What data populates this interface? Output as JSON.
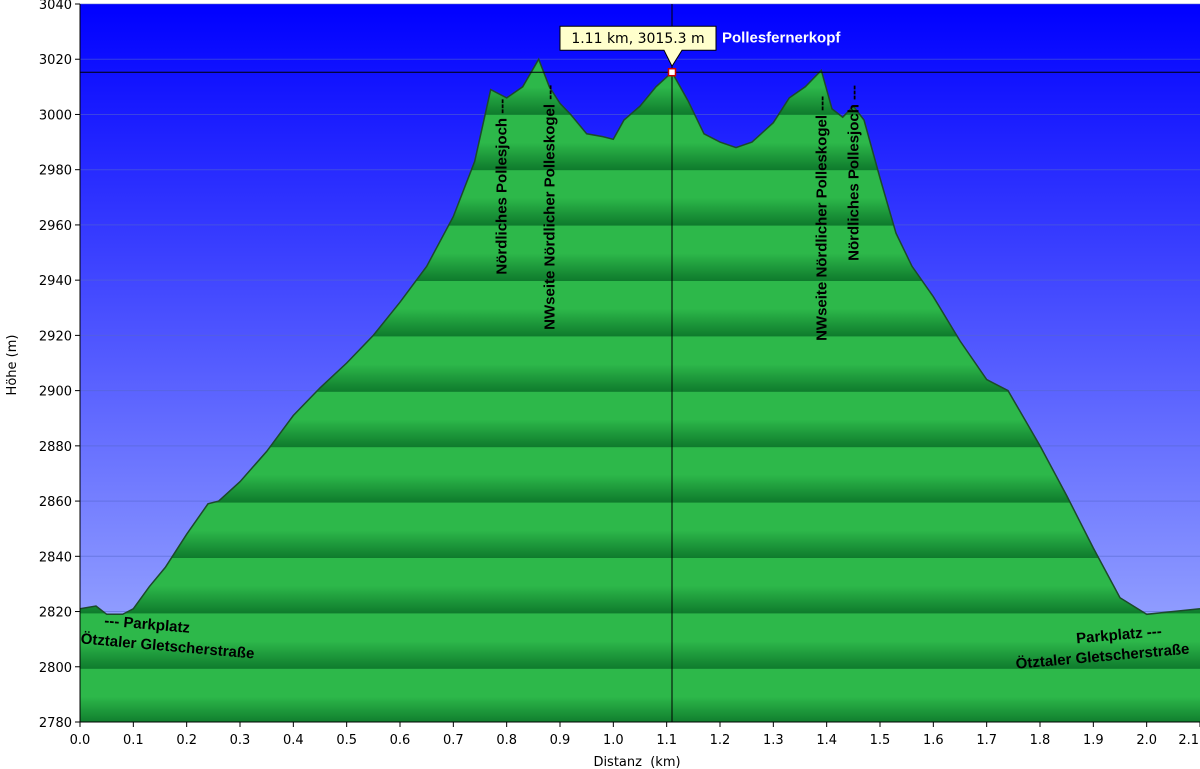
{
  "chart_data": {
    "type": "area",
    "title": "",
    "xlabel": "Distanz  (km)",
    "ylabel": "Höhe (m)",
    "xlim": [
      0.0,
      2.1
    ],
    "ylim": [
      2780,
      3040
    ],
    "x_ticks": [
      "0.0",
      "0.1",
      "0.2",
      "0.3",
      "0.4",
      "0.5",
      "0.6",
      "0.7",
      "0.8",
      "0.9",
      "1.0",
      "1.1",
      "1.2",
      "1.3",
      "1.4",
      "1.5",
      "1.6",
      "1.7",
      "1.8",
      "1.9",
      "2.0",
      "2.1"
    ],
    "y_ticks": [
      "2780",
      "2800",
      "2820",
      "2840",
      "2860",
      "2880",
      "2900",
      "2920",
      "2940",
      "2960",
      "2980",
      "3000",
      "3020",
      "3040"
    ],
    "grid": true,
    "series": [
      {
        "x": [
          0.0,
          0.03,
          0.05,
          0.08,
          0.1,
          0.13,
          0.16,
          0.2,
          0.24,
          0.26,
          0.3,
          0.35,
          0.4,
          0.45,
          0.5,
          0.55,
          0.6,
          0.65,
          0.7,
          0.74,
          0.77,
          0.8,
          0.83,
          0.86,
          0.88,
          0.9,
          0.92,
          0.95,
          0.98,
          1.0,
          1.02,
          1.05,
          1.08,
          1.11,
          1.14,
          1.17,
          1.2,
          1.23,
          1.26,
          1.3,
          1.33,
          1.36,
          1.39,
          1.41,
          1.43,
          1.45,
          1.47,
          1.5,
          1.53,
          1.56,
          1.6,
          1.65,
          1.7,
          1.74,
          1.8,
          1.85,
          1.9,
          1.95,
          2.0,
          2.05,
          2.1
        ],
        "values": [
          2821,
          2822,
          2819,
          2819,
          2821,
          2829,
          2836,
          2848,
          2859,
          2860,
          2867,
          2878,
          2891,
          2901,
          2910,
          2920,
          2932,
          2945,
          2963,
          2983,
          3009,
          3006,
          3010,
          3020,
          3010,
          3004,
          3000,
          2993,
          2992,
          2991,
          2998,
          3003,
          3010,
          3015.3,
          3005,
          2993,
          2990,
          2988,
          2990,
          2997,
          3006,
          3010,
          3016,
          3002,
          2999,
          3003,
          2998,
          2977,
          2957,
          2945,
          2934,
          2918,
          2904,
          2900,
          2880,
          2862,
          2843,
          2825,
          2819,
          2820,
          2821
        ]
      }
    ],
    "annotations": [
      {
        "x": 0.0,
        "label_lines": [
          "--- Parkplatz",
          "Ötztaler Gletscherstraße"
        ]
      },
      {
        "x": 0.79,
        "label": "Nördliches Pollesjoch ---"
      },
      {
        "x": 0.88,
        "label": "NWseite Nördlicher Polleskogel ---"
      },
      {
        "x": 1.11,
        "label": "Pollesfernerkopf"
      },
      {
        "x": 1.39,
        "label": "NWseite Nördlicher Polleskogel ---"
      },
      {
        "x": 1.45,
        "label": "Nördliches Pollesjoch ---"
      },
      {
        "x": 2.1,
        "label_lines": [
          "Parkplatz ---",
          "Ötztaler Gletscherstraße"
        ]
      }
    ],
    "cursor": {
      "x": 1.11,
      "y": 3015.3,
      "label": "1.11 km, 3015.3 m"
    },
    "colors": {
      "sky_top": "#0000ff",
      "sky_bottom": "#a9b8ff",
      "fill_light": "#2db84a",
      "fill_dark": "#0e7a2c",
      "outline": "#1c4a2a"
    }
  }
}
